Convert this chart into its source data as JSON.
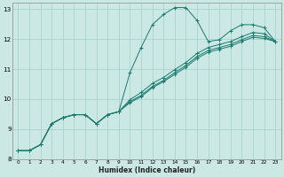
{
  "xlabel": "Humidex (Indice chaleur)",
  "background_color": "#cce8e4",
  "grid_color": "#aad4cf",
  "line_color": "#1a7a6e",
  "xlim": [
    -0.5,
    23.5
  ],
  "ylim": [
    8,
    13.2
  ],
  "yticks": [
    8,
    9,
    10,
    11,
    12,
    13
  ],
  "xticks": [
    0,
    1,
    2,
    3,
    4,
    5,
    6,
    7,
    8,
    9,
    10,
    11,
    12,
    13,
    14,
    15,
    16,
    17,
    18,
    19,
    20,
    21,
    22,
    23
  ],
  "series": [
    [
      8.28,
      8.28,
      8.48,
      9.18,
      9.38,
      9.48,
      9.48,
      9.18,
      9.48,
      9.58,
      10.88,
      11.72,
      12.48,
      12.82,
      13.05,
      13.05,
      12.62,
      11.92,
      11.98,
      12.28,
      12.48,
      12.48,
      12.38,
      11.92
    ],
    [
      8.28,
      8.28,
      8.48,
      9.18,
      9.38,
      9.48,
      9.48,
      9.18,
      9.48,
      9.58,
      9.98,
      10.22,
      10.52,
      10.72,
      10.98,
      11.22,
      11.52,
      11.72,
      11.82,
      11.92,
      12.08,
      12.22,
      12.18,
      11.92
    ],
    [
      8.28,
      8.28,
      8.48,
      9.18,
      9.38,
      9.48,
      9.48,
      9.18,
      9.48,
      9.58,
      9.92,
      10.12,
      10.42,
      10.62,
      10.88,
      11.12,
      11.42,
      11.62,
      11.72,
      11.82,
      11.98,
      12.12,
      12.08,
      11.92
    ],
    [
      8.28,
      8.28,
      8.48,
      9.18,
      9.38,
      9.48,
      9.48,
      9.18,
      9.48,
      9.58,
      9.88,
      10.08,
      10.38,
      10.58,
      10.82,
      11.06,
      11.36,
      11.56,
      11.66,
      11.76,
      11.92,
      12.06,
      12.02,
      11.92
    ]
  ]
}
